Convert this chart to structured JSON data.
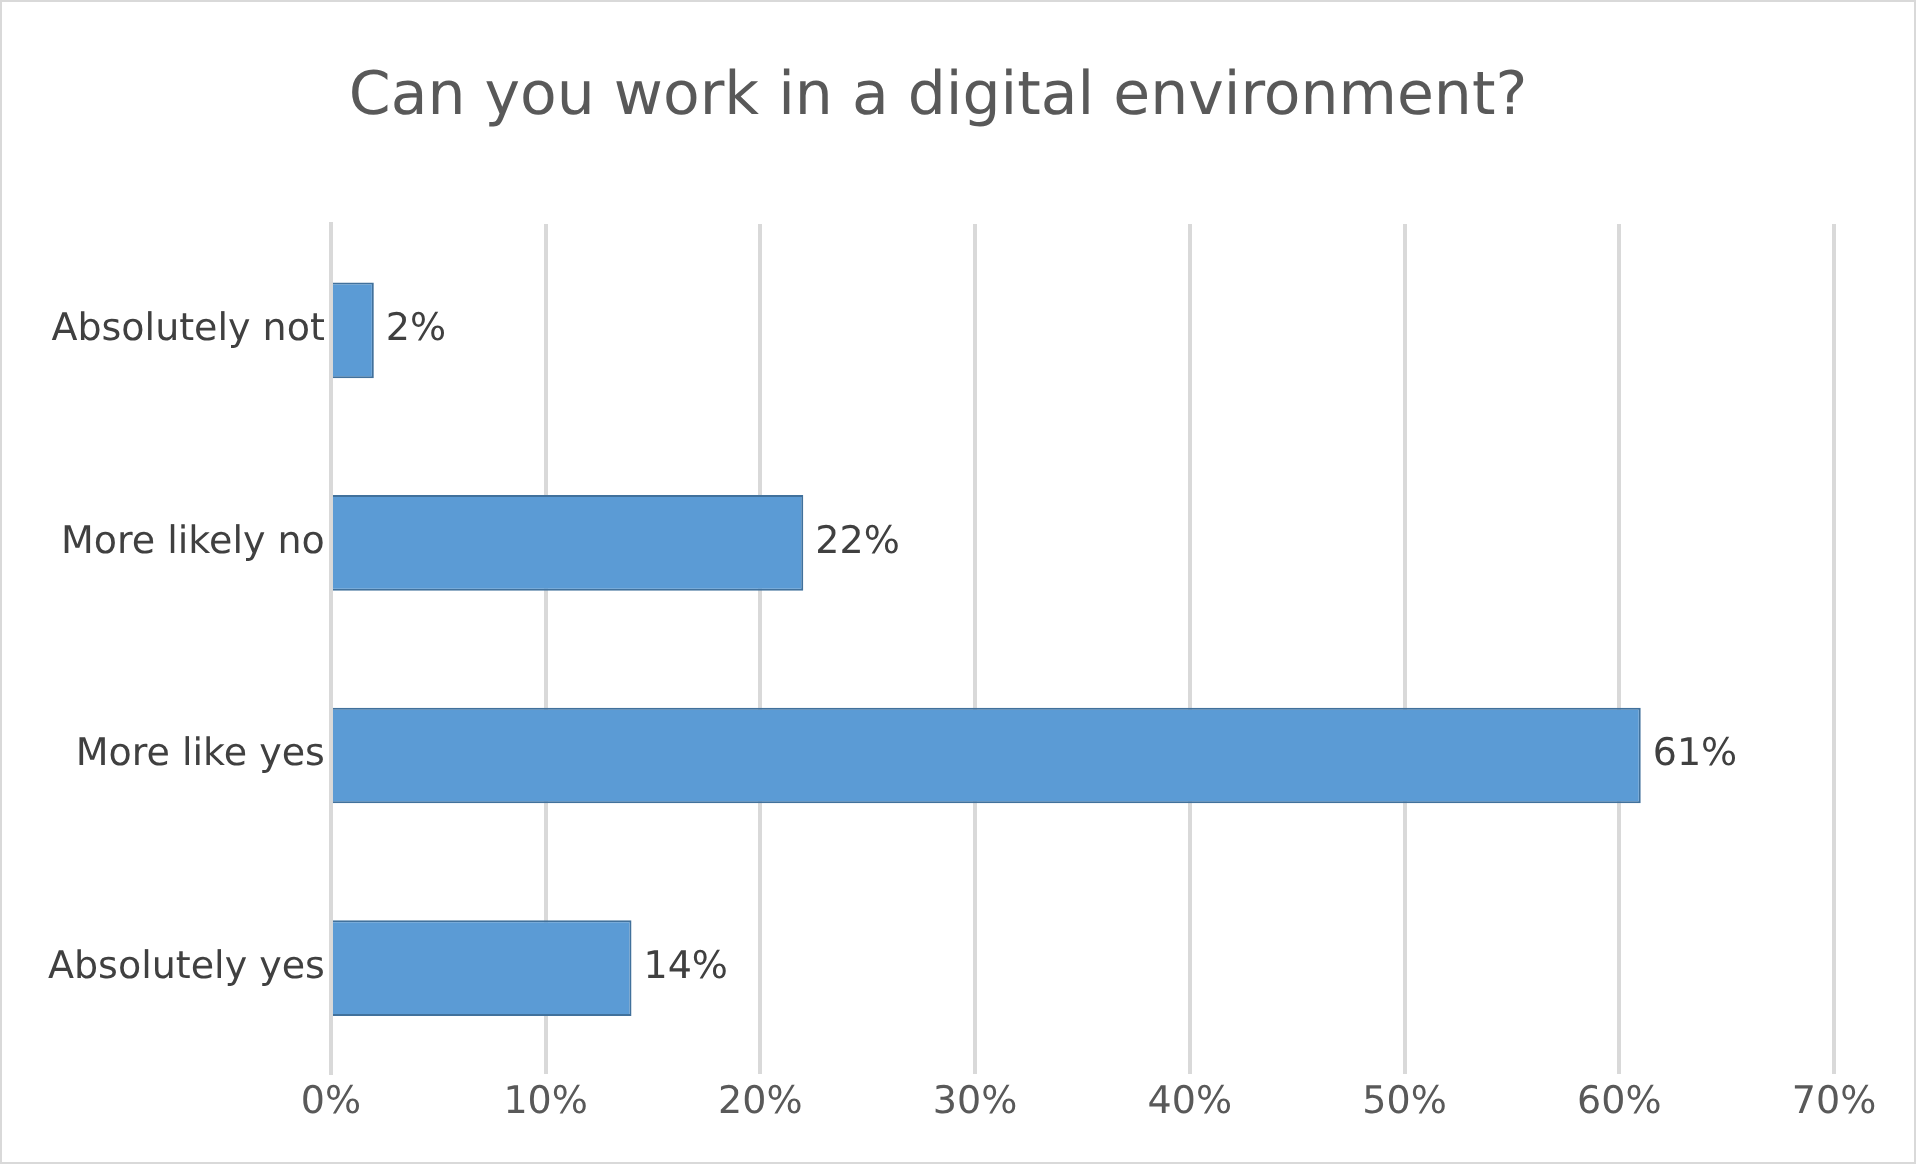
{
  "chart_data": {
    "type": "bar",
    "orientation": "horizontal",
    "title": "Can you work in a digital environment?",
    "categories": [
      "Absolutely not",
      "More likely no",
      "More like yes",
      "Absolutely yes"
    ],
    "values": [
      2,
      22,
      61,
      14
    ],
    "color": "#5b9bd5",
    "value_labels": [
      "2%",
      "22%",
      "61%",
      "14%"
    ],
    "xlim": [
      0,
      70
    ],
    "xticks": [
      {
        "value": 0,
        "label": "0%"
      },
      {
        "value": 10,
        "label": "10%"
      },
      {
        "value": 20,
        "label": "20%"
      },
      {
        "value": 30,
        "label": "30%"
      },
      {
        "value": 40,
        "label": "40%"
      },
      {
        "value": 50,
        "label": "50%"
      },
      {
        "value": 60,
        "label": "60%"
      },
      {
        "value": 70,
        "label": "70%"
      }
    ],
    "grid": "x",
    "legend": false
  }
}
